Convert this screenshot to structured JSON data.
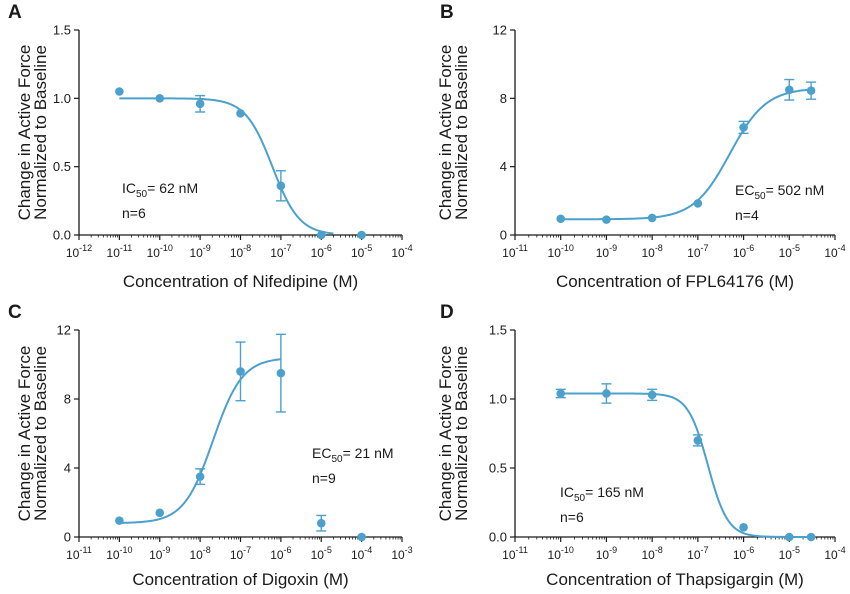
{
  "chart_data": [
    {
      "panel": "A",
      "type": "scatter",
      "x_scale": "log",
      "xlim_exp": [
        -12,
        -4
      ],
      "xtick_exps": [
        -12,
        -11,
        -10,
        -9,
        -8,
        -7,
        -6,
        -5,
        -4
      ],
      "xlabel": "Concentration of Nifedipine (M)",
      "ylabel_lines": [
        "Change in Active Force",
        "Normalized to Baseline"
      ],
      "ylim": [
        0,
        1.5
      ],
      "yticks": [
        0,
        0.5,
        1.0,
        1.5
      ],
      "ytick_labels": [
        "0.0",
        "0.5",
        "1.0",
        "1.5"
      ],
      "points": [
        {
          "x": 1e-11,
          "y": 1.05,
          "err": 0
        },
        {
          "x": 1e-10,
          "y": 1.0,
          "err": 0
        },
        {
          "x": 1e-09,
          "y": 0.96,
          "err": 0.06
        },
        {
          "x": 1e-08,
          "y": 0.89,
          "err": 0
        },
        {
          "x": 1e-07,
          "y": 0.36,
          "err": 0.11
        },
        {
          "x": 1e-06,
          "y": 0.0,
          "err": 0
        },
        {
          "x": 1e-05,
          "y": 0.0,
          "err": 0
        }
      ],
      "fit": {
        "kind": "inhibition",
        "top": 1.0,
        "bottom": 0.0,
        "center_log": -7.21,
        "hill": 1.3,
        "from_exp": -11,
        "to_exp": -5.7
      },
      "annotation": {
        "prefix": "IC",
        "sub": "50",
        "rest": "= 62 nM",
        "n": "n=6"
      }
    },
    {
      "panel": "B",
      "type": "scatter",
      "x_scale": "log",
      "xlim_exp": [
        -11,
        -4
      ],
      "xtick_exps": [
        -11,
        -10,
        -9,
        -8,
        -7,
        -6,
        -5,
        -4
      ],
      "xlabel": "Concentration of FPL64176 (M)",
      "ylabel_lines": [
        "Change in Active Force",
        "Normalized to Baseline"
      ],
      "ylim": [
        0,
        12
      ],
      "yticks": [
        0,
        4,
        8,
        12
      ],
      "ytick_labels": [
        "0",
        "4",
        "8",
        "12"
      ],
      "points": [
        {
          "x": 1e-10,
          "y": 0.95,
          "err": 0
        },
        {
          "x": 1e-09,
          "y": 0.9,
          "err": 0
        },
        {
          "x": 1e-08,
          "y": 1.0,
          "err": 0
        },
        {
          "x": 1e-07,
          "y": 1.85,
          "err": 0
        },
        {
          "x": 1e-06,
          "y": 6.3,
          "err": 0.35
        },
        {
          "x": 1e-05,
          "y": 8.5,
          "err": 0.6
        },
        {
          "x": 3e-05,
          "y": 8.45,
          "err": 0.5
        }
      ],
      "fit": {
        "kind": "stimulation",
        "top": 8.6,
        "bottom": 0.92,
        "center_log": -6.3,
        "hill": 1.1,
        "from_exp": -10,
        "to_exp": -4.52
      },
      "annotation": {
        "prefix": "EC",
        "sub": "50",
        "rest": "= 502 nM",
        "n": "n=4"
      }
    },
    {
      "panel": "C",
      "type": "scatter",
      "x_scale": "log",
      "xlim_exp": [
        -11,
        -3
      ],
      "xtick_exps": [
        -11,
        -10,
        -9,
        -8,
        -7,
        -6,
        -5,
        -4,
        -3
      ],
      "xlabel": "Concentration of Digoxin (M)",
      "ylabel_lines": [
        "Change in Active Force",
        "Normalized to Baseline"
      ],
      "ylim": [
        0,
        12
      ],
      "yticks": [
        0,
        4,
        8,
        12
      ],
      "ytick_labels": [
        "0",
        "4",
        "8",
        "12"
      ],
      "points": [
        {
          "x": 1e-10,
          "y": 0.95,
          "err": 0
        },
        {
          "x": 1e-09,
          "y": 1.4,
          "err": 0
        },
        {
          "x": 1e-08,
          "y": 3.5,
          "err": 0.45
        },
        {
          "x": 1e-07,
          "y": 9.6,
          "err": 1.7
        },
        {
          "x": 1e-06,
          "y": 9.5,
          "err": 2.25
        },
        {
          "x": 1e-05,
          "y": 0.8,
          "err": 0.45
        },
        {
          "x": 0.0001,
          "y": 0.0,
          "err": 0
        }
      ],
      "fit": {
        "kind": "stimulation",
        "top": 10.4,
        "bottom": 0.8,
        "center_log": -7.68,
        "hill": 1.2,
        "from_exp": -10,
        "to_exp": -6
      },
      "annotation": {
        "prefix": "EC",
        "sub": "50",
        "rest": "= 21 nM",
        "n": "n=9"
      }
    },
    {
      "panel": "D",
      "type": "scatter",
      "x_scale": "log",
      "xlim_exp": [
        -11,
        -4
      ],
      "xtick_exps": [
        -11,
        -10,
        -9,
        -8,
        -7,
        -6,
        -5,
        -4
      ],
      "xlabel": "Concentration of Thapsigargin (M)",
      "ylabel_lines": [
        "Change in Active Force",
        "Normalized to Baseline"
      ],
      "ylim": [
        0,
        1.5
      ],
      "yticks": [
        0,
        0.5,
        1.0,
        1.5
      ],
      "ytick_labels": [
        "0.0",
        "0.5",
        "1.0",
        "1.5"
      ],
      "points": [
        {
          "x": 1e-10,
          "y": 1.04,
          "err": 0.03
        },
        {
          "x": 1e-09,
          "y": 1.04,
          "err": 0.07
        },
        {
          "x": 1e-08,
          "y": 1.03,
          "err": 0.04
        },
        {
          "x": 1e-07,
          "y": 0.7,
          "err": 0.04
        },
        {
          "x": 1e-06,
          "y": 0.07,
          "err": 0
        },
        {
          "x": 1e-05,
          "y": 0.0,
          "err": 0
        },
        {
          "x": 3e-05,
          "y": 0.0,
          "err": 0
        }
      ],
      "fit": {
        "kind": "inhibition",
        "top": 1.04,
        "bottom": 0.0,
        "center_log": -6.78,
        "hill": 2.0,
        "from_exp": -10,
        "to_exp": -4.52
      },
      "annotation": {
        "prefix": "IC",
        "sub": "50",
        "rest": "= 165 nM",
        "n": "n=6"
      }
    }
  ],
  "colors": {
    "series": "#4ba0cc",
    "axis": "#1a1a1a"
  }
}
